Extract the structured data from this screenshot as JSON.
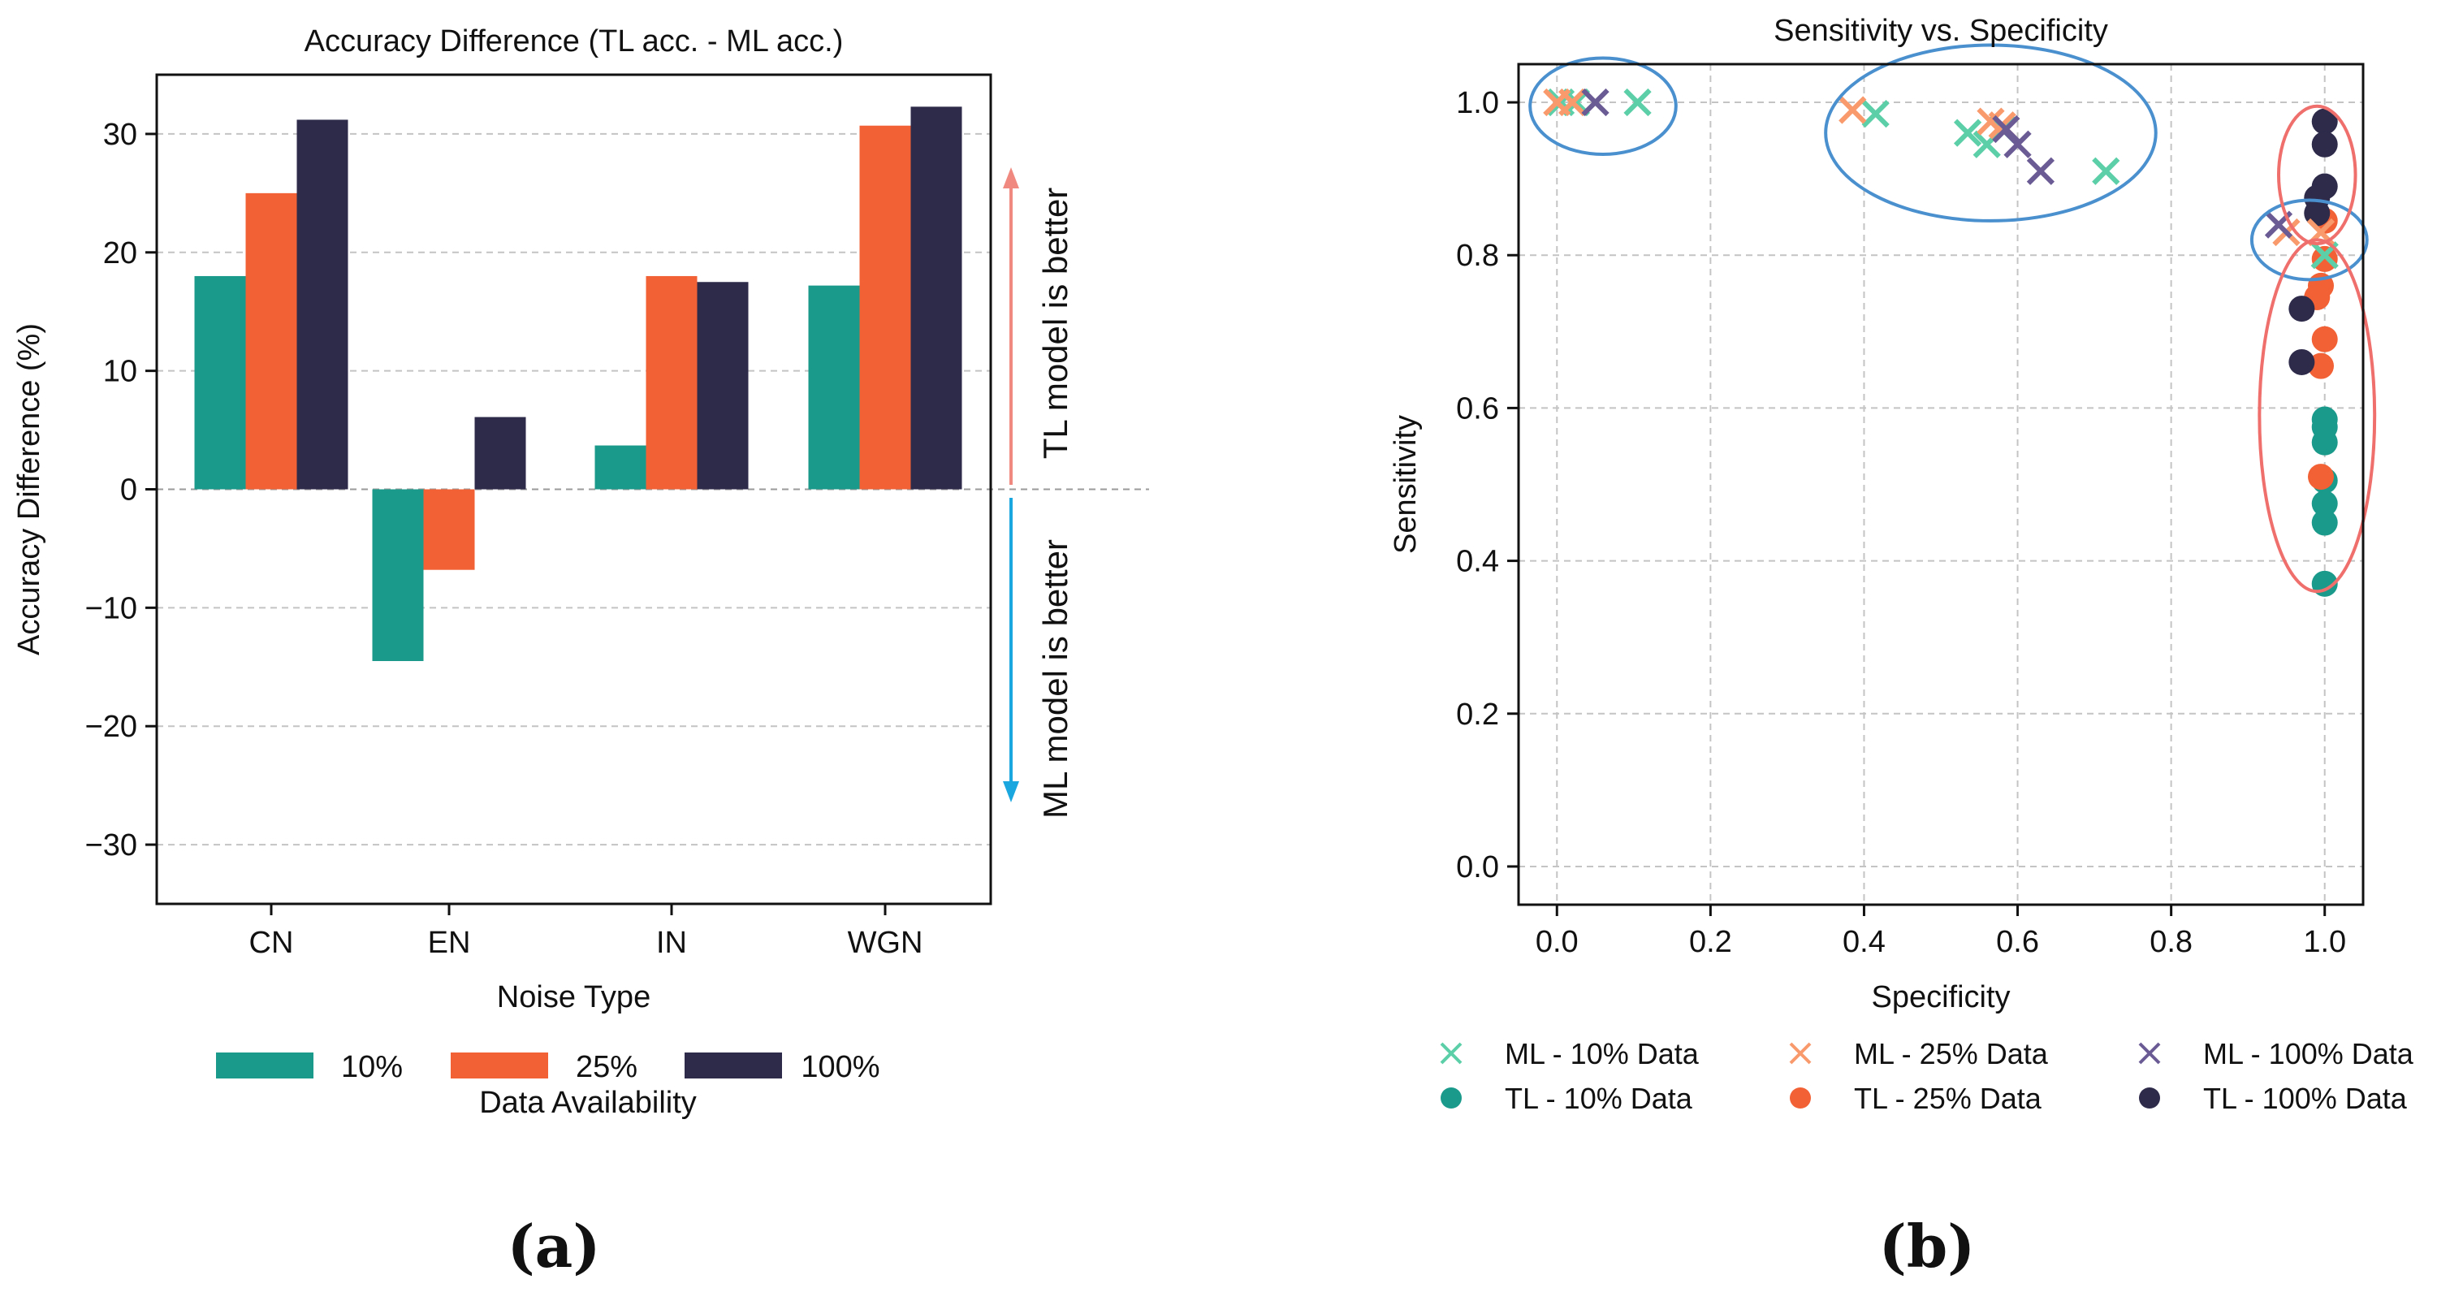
{
  "colors": {
    "c10": "#1a9a8b",
    "c25": "#f26135",
    "c100": "#2d2a4a",
    "ml10": "#5ccfa8",
    "ml25": "#f89a6c",
    "ml100": "#6b5b95",
    "better_tl": "#f08a80",
    "better_ml": "#1aa7e0",
    "ellipse_blue": "#4a90cf",
    "ellipse_red": "#ef6f6c"
  },
  "chart_data": [
    {
      "type": "bar",
      "title": "Accuracy Difference (TL acc. - ML acc.)",
      "xlabel": "Noise Type",
      "ylabel": "Accuracy Difference (%)",
      "ylim": [
        -35,
        35
      ],
      "yticks": [
        30,
        20,
        10,
        0,
        -10,
        -20,
        -30
      ],
      "ytick_labels": [
        "30",
        "20",
        "10",
        "0",
        "−10",
        "−20",
        "−30"
      ],
      "categories": [
        "CN",
        "EN",
        "IN",
        "WGN"
      ],
      "series": [
        {
          "name": "10%",
          "values": [
            18,
            -14.5,
            3.7,
            17.2
          ]
        },
        {
          "name": "25%",
          "values": [
            25,
            -6.8,
            18,
            30.7
          ]
        },
        {
          "name": "100%",
          "values": [
            31.2,
            6.1,
            17.5,
            32.3
          ]
        }
      ],
      "legend_title": "Data Availability",
      "legend_placement": "bottom",
      "annotations": {
        "up": "TL model is better",
        "down": "ML model is better"
      },
      "grid": "horizontal-dashed",
      "caption": "(a)"
    },
    {
      "type": "scatter",
      "title": "Sensitivity vs. Specificity",
      "xlabel": "Specificity",
      "ylabel": "Sensitivity",
      "xlim": [
        -0.05,
        1.05
      ],
      "ylim": [
        -0.05,
        1.05
      ],
      "ticks": [
        0,
        0.2,
        0.4,
        0.6,
        0.8,
        1.0
      ],
      "tick_labels": [
        "0.0",
        "0.2",
        "0.4",
        "0.6",
        "0.8",
        "1.0"
      ],
      "grid": "dashed",
      "legend_placement": "bottom",
      "series": [
        {
          "name": "ML - 10% Data",
          "marker": "x",
          "points": [
            [
              0.005,
              1.0
            ],
            [
              0.025,
              1.0
            ],
            [
              0.105,
              1.0
            ],
            [
              0.415,
              0.985
            ],
            [
              0.535,
              0.96
            ],
            [
              0.56,
              0.945
            ],
            [
              0.58,
              0.965
            ],
            [
              0.715,
              0.91
            ],
            [
              1.0,
              0.8
            ]
          ]
        },
        {
          "name": "ML - 25% Data",
          "marker": "x",
          "points": [
            [
              0.0,
              1.0
            ],
            [
              0.02,
              1.0
            ],
            [
              0.385,
              0.99
            ],
            [
              0.565,
              0.975
            ],
            [
              0.58,
              0.97
            ],
            [
              0.95,
              0.83
            ],
            [
              0.995,
              0.83
            ]
          ]
        },
        {
          "name": "ML - 100% Data",
          "marker": "x",
          "points": [
            [
              0.05,
              1.0
            ],
            [
              0.585,
              0.965
            ],
            [
              0.6,
              0.945
            ],
            [
              0.63,
              0.91
            ],
            [
              0.94,
              0.84
            ]
          ]
        },
        {
          "name": "TL - 10% Data",
          "marker": "o",
          "points": [
            [
              1.0,
              0.585
            ],
            [
              1.0,
              0.575
            ],
            [
              1.0,
              0.555
            ],
            [
              1.0,
              0.505
            ],
            [
              1.0,
              0.475
            ],
            [
              1.0,
              0.45
            ],
            [
              1.0,
              0.37
            ]
          ]
        },
        {
          "name": "TL - 25% Data",
          "marker": "o",
          "points": [
            [
              1.0,
              0.845
            ],
            [
              1.0,
              0.795
            ],
            [
              0.995,
              0.76
            ],
            [
              0.99,
              0.745
            ],
            [
              1.0,
              0.69
            ],
            [
              0.995,
              0.655
            ],
            [
              0.995,
              0.51
            ]
          ]
        },
        {
          "name": "TL - 100% Data",
          "marker": "o",
          "points": [
            [
              1.0,
              0.975
            ],
            [
              1.0,
              0.945
            ],
            [
              1.0,
              0.89
            ],
            [
              0.99,
              0.875
            ],
            [
              0.99,
              0.855
            ],
            [
              0.97,
              0.73
            ],
            [
              0.97,
              0.66
            ]
          ]
        }
      ],
      "ellipses": [
        {
          "color": "blue",
          "cx": 0.06,
          "cy": 0.995,
          "rx": 0.095,
          "ry": 0.063
        },
        {
          "color": "blue",
          "cx": 0.565,
          "cy": 0.96,
          "rx": 0.215,
          "ry": 0.115
        },
        {
          "color": "blue",
          "cx": 0.98,
          "cy": 0.82,
          "rx": 0.075,
          "ry": 0.052
        },
        {
          "color": "red",
          "cx": 0.99,
          "cy": 0.905,
          "rx": 0.05,
          "ry": 0.09
        },
        {
          "color": "red",
          "cx": 0.99,
          "cy": 0.59,
          "rx": 0.075,
          "ry": 0.23
        }
      ],
      "caption": "(b)"
    }
  ]
}
